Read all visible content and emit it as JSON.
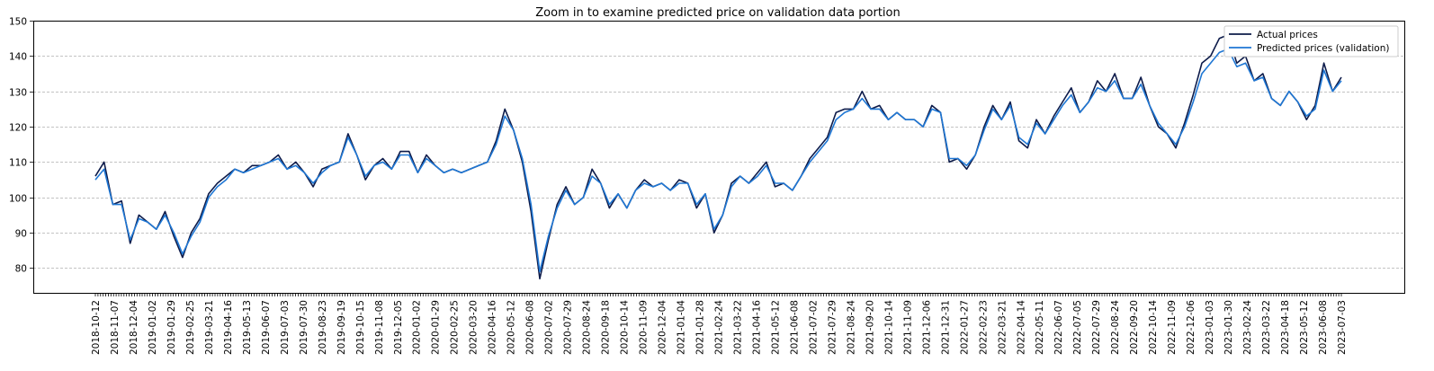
{
  "chart_data": {
    "type": "line",
    "title": "Zoom in to examine predicted price on validation data portion",
    "xlabel": "",
    "ylabel": "",
    "ylim": [
      73,
      150
    ],
    "yticks": [
      80,
      90,
      100,
      110,
      120,
      130,
      140,
      150
    ],
    "grid": "horizontal dashed",
    "legend_position": "top-right",
    "x_tick_labels": [
      "2018-10-12",
      "2018-11-07",
      "2018-12-04",
      "2019-01-02",
      "2019-01-29",
      "2019-02-25",
      "2019-03-21",
      "2019-04-16",
      "2019-05-13",
      "2019-06-07",
      "2019-07-03",
      "2019-07-30",
      "2019-08-23",
      "2019-09-19",
      "2019-10-15",
      "2019-11-08",
      "2019-12-05",
      "2020-01-02",
      "2020-01-29",
      "2020-02-25",
      "2020-03-20",
      "2020-04-16",
      "2020-05-12",
      "2020-06-08",
      "2020-07-02",
      "2020-07-29",
      "2020-08-24",
      "2020-09-18",
      "2020-10-14",
      "2020-11-09",
      "2020-12-04",
      "2021-01-04",
      "2021-01-28",
      "2021-02-24",
      "2021-03-22",
      "2021-04-16",
      "2021-05-12",
      "2021-06-08",
      "2021-07-02",
      "2021-07-29",
      "2021-08-24",
      "2021-09-20",
      "2021-10-14",
      "2021-11-09",
      "2021-12-06",
      "2021-12-31",
      "2022-01-27",
      "2022-02-23",
      "2022-03-21",
      "2022-04-14",
      "2022-05-11",
      "2022-06-07",
      "2022-07-05",
      "2022-07-29",
      "2022-08-24",
      "2022-09-20",
      "2022-10-14",
      "2022-11-09",
      "2022-12-06",
      "2023-01-03",
      "2023-01-30",
      "2023-02-24",
      "2023-03-22",
      "2023-04-18",
      "2023-05-12",
      "2023-06-08",
      "2023-07-03"
    ],
    "series": [
      {
        "name": "Actual prices",
        "color": "#0d1b4a",
        "values": [
          106,
          110,
          98,
          99,
          87,
          95,
          93,
          91,
          96,
          89,
          83,
          90,
          94,
          101,
          104,
          106,
          108,
          107,
          109,
          109,
          110,
          112,
          108,
          110,
          107,
          103,
          108,
          109,
          110,
          118,
          112,
          105,
          109,
          111,
          108,
          113,
          113,
          107,
          112,
          109,
          107,
          108,
          107,
          108,
          109,
          110,
          116,
          125,
          119,
          110,
          96,
          77,
          88,
          98,
          103,
          98,
          100,
          108,
          104,
          97,
          101,
          97,
          102,
          105,
          103,
          104,
          102,
          105,
          104,
          97,
          101,
          90,
          95,
          104,
          106,
          104,
          107,
          110,
          103,
          104,
          102,
          106,
          111,
          114,
          117,
          124,
          125,
          125,
          130,
          125,
          126,
          122,
          124,
          122,
          122,
          120,
          126,
          124,
          110,
          111,
          108,
          112,
          120,
          126,
          122,
          127,
          116,
          114,
          122,
          118,
          123,
          127,
          131,
          124,
          127,
          133,
          130,
          135,
          128,
          128,
          134,
          126,
          120,
          118,
          114,
          121,
          129,
          138,
          140,
          145,
          146,
          138,
          140,
          133,
          135,
          128,
          126,
          130,
          127,
          122,
          126,
          138,
          130,
          134
        ]
      },
      {
        "name": "Predicted prices (validation)",
        "color": "#1f77d4",
        "values": [
          105,
          108,
          98,
          98,
          88,
          94,
          93,
          91,
          95,
          90,
          84,
          89,
          93,
          100,
          103,
          105,
          108,
          107,
          108,
          109,
          110,
          111,
          108,
          109,
          107,
          104,
          107,
          109,
          110,
          117,
          112,
          106,
          109,
          110,
          108,
          112,
          112,
          107,
          111,
          109,
          107,
          108,
          107,
          108,
          109,
          110,
          115,
          123,
          119,
          111,
          98,
          79,
          89,
          97,
          102,
          98,
          100,
          106,
          104,
          98,
          101,
          97,
          102,
          104,
          103,
          104,
          102,
          104,
          104,
          98,
          101,
          91,
          95,
          103,
          106,
          104,
          106,
          109,
          104,
          104,
          102,
          106,
          110,
          113,
          116,
          122,
          124,
          125,
          128,
          125,
          125,
          122,
          124,
          122,
          122,
          120,
          125,
          124,
          111,
          111,
          109,
          112,
          119,
          125,
          122,
          126,
          117,
          115,
          121,
          118,
          122,
          126,
          129,
          124,
          127,
          131,
          130,
          133,
          128,
          128,
          132,
          126,
          121,
          118,
          115,
          120,
          127,
          135,
          138,
          141,
          142,
          137,
          138,
          133,
          134,
          128,
          126,
          130,
          127,
          123,
          125,
          136,
          130,
          133
        ]
      }
    ]
  }
}
